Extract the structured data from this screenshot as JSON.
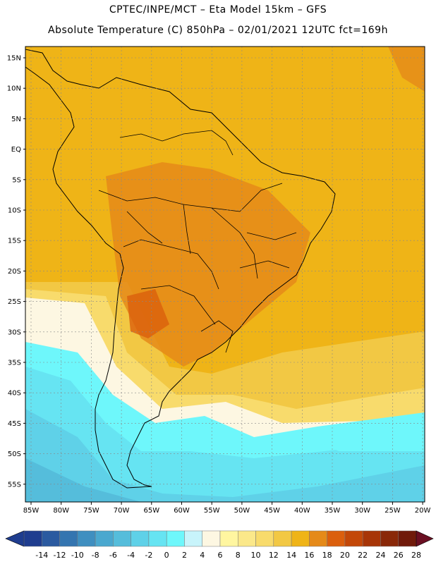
{
  "header": {
    "line1": "CPTEC/INPE/MCT – Eta Model 15km – GFS",
    "line2": "Absolute Temperature (C) 850hPa – 02/01/2021 12UTC fct=169h"
  },
  "map": {
    "lat_labels": [
      "15N",
      "10N",
      "5N",
      "EQ",
      "5S",
      "10S",
      "15S",
      "20S",
      "25S",
      "30S",
      "35S",
      "40S",
      "45S",
      "50S",
      "55S"
    ],
    "lon_labels": [
      "85W",
      "80W",
      "75W",
      "70W",
      "65W",
      "60W",
      "55W",
      "50W",
      "45W",
      "40W",
      "35W",
      "30W",
      "25W",
      "20W"
    ]
  },
  "colorbar": {
    "ticks": [
      "-14",
      "-12",
      "-10",
      "-8",
      "-6",
      "-4",
      "-2",
      "0",
      "2",
      "4",
      "6",
      "8",
      "10",
      "12",
      "14",
      "16",
      "18",
      "20",
      "22",
      "24",
      "26",
      "28"
    ],
    "colors": [
      "#1f3d8f",
      "#2b5aa0",
      "#3475b0",
      "#3f8fc0",
      "#4aa8cf",
      "#55bddb",
      "#5fd1e8",
      "#66e4f2",
      "#6ef7fb",
      "#c8f4fb",
      "#fdf7e2",
      "#fff6a0",
      "#fbe88a",
      "#f8db6c",
      "#f2c844",
      "#efb417",
      "#e58a19",
      "#db5f0d",
      "#c34808",
      "#a73507",
      "#8a2808",
      "#701a0a"
    ]
  }
}
